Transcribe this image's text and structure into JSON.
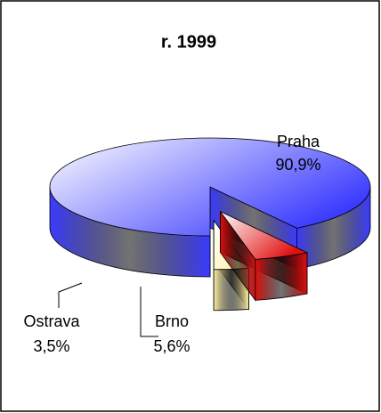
{
  "chart_data": {
    "type": "pie",
    "title": "r. 1999",
    "categories": [
      "Praha",
      "Brno",
      "Ostrava"
    ],
    "values": [
      90.9,
      5.6,
      3.5
    ],
    "value_labels": [
      "90,9%",
      "5,6%",
      "3,5%"
    ],
    "colors": [
      "#3b3bff",
      "#e01010",
      "#fff0a0"
    ]
  }
}
